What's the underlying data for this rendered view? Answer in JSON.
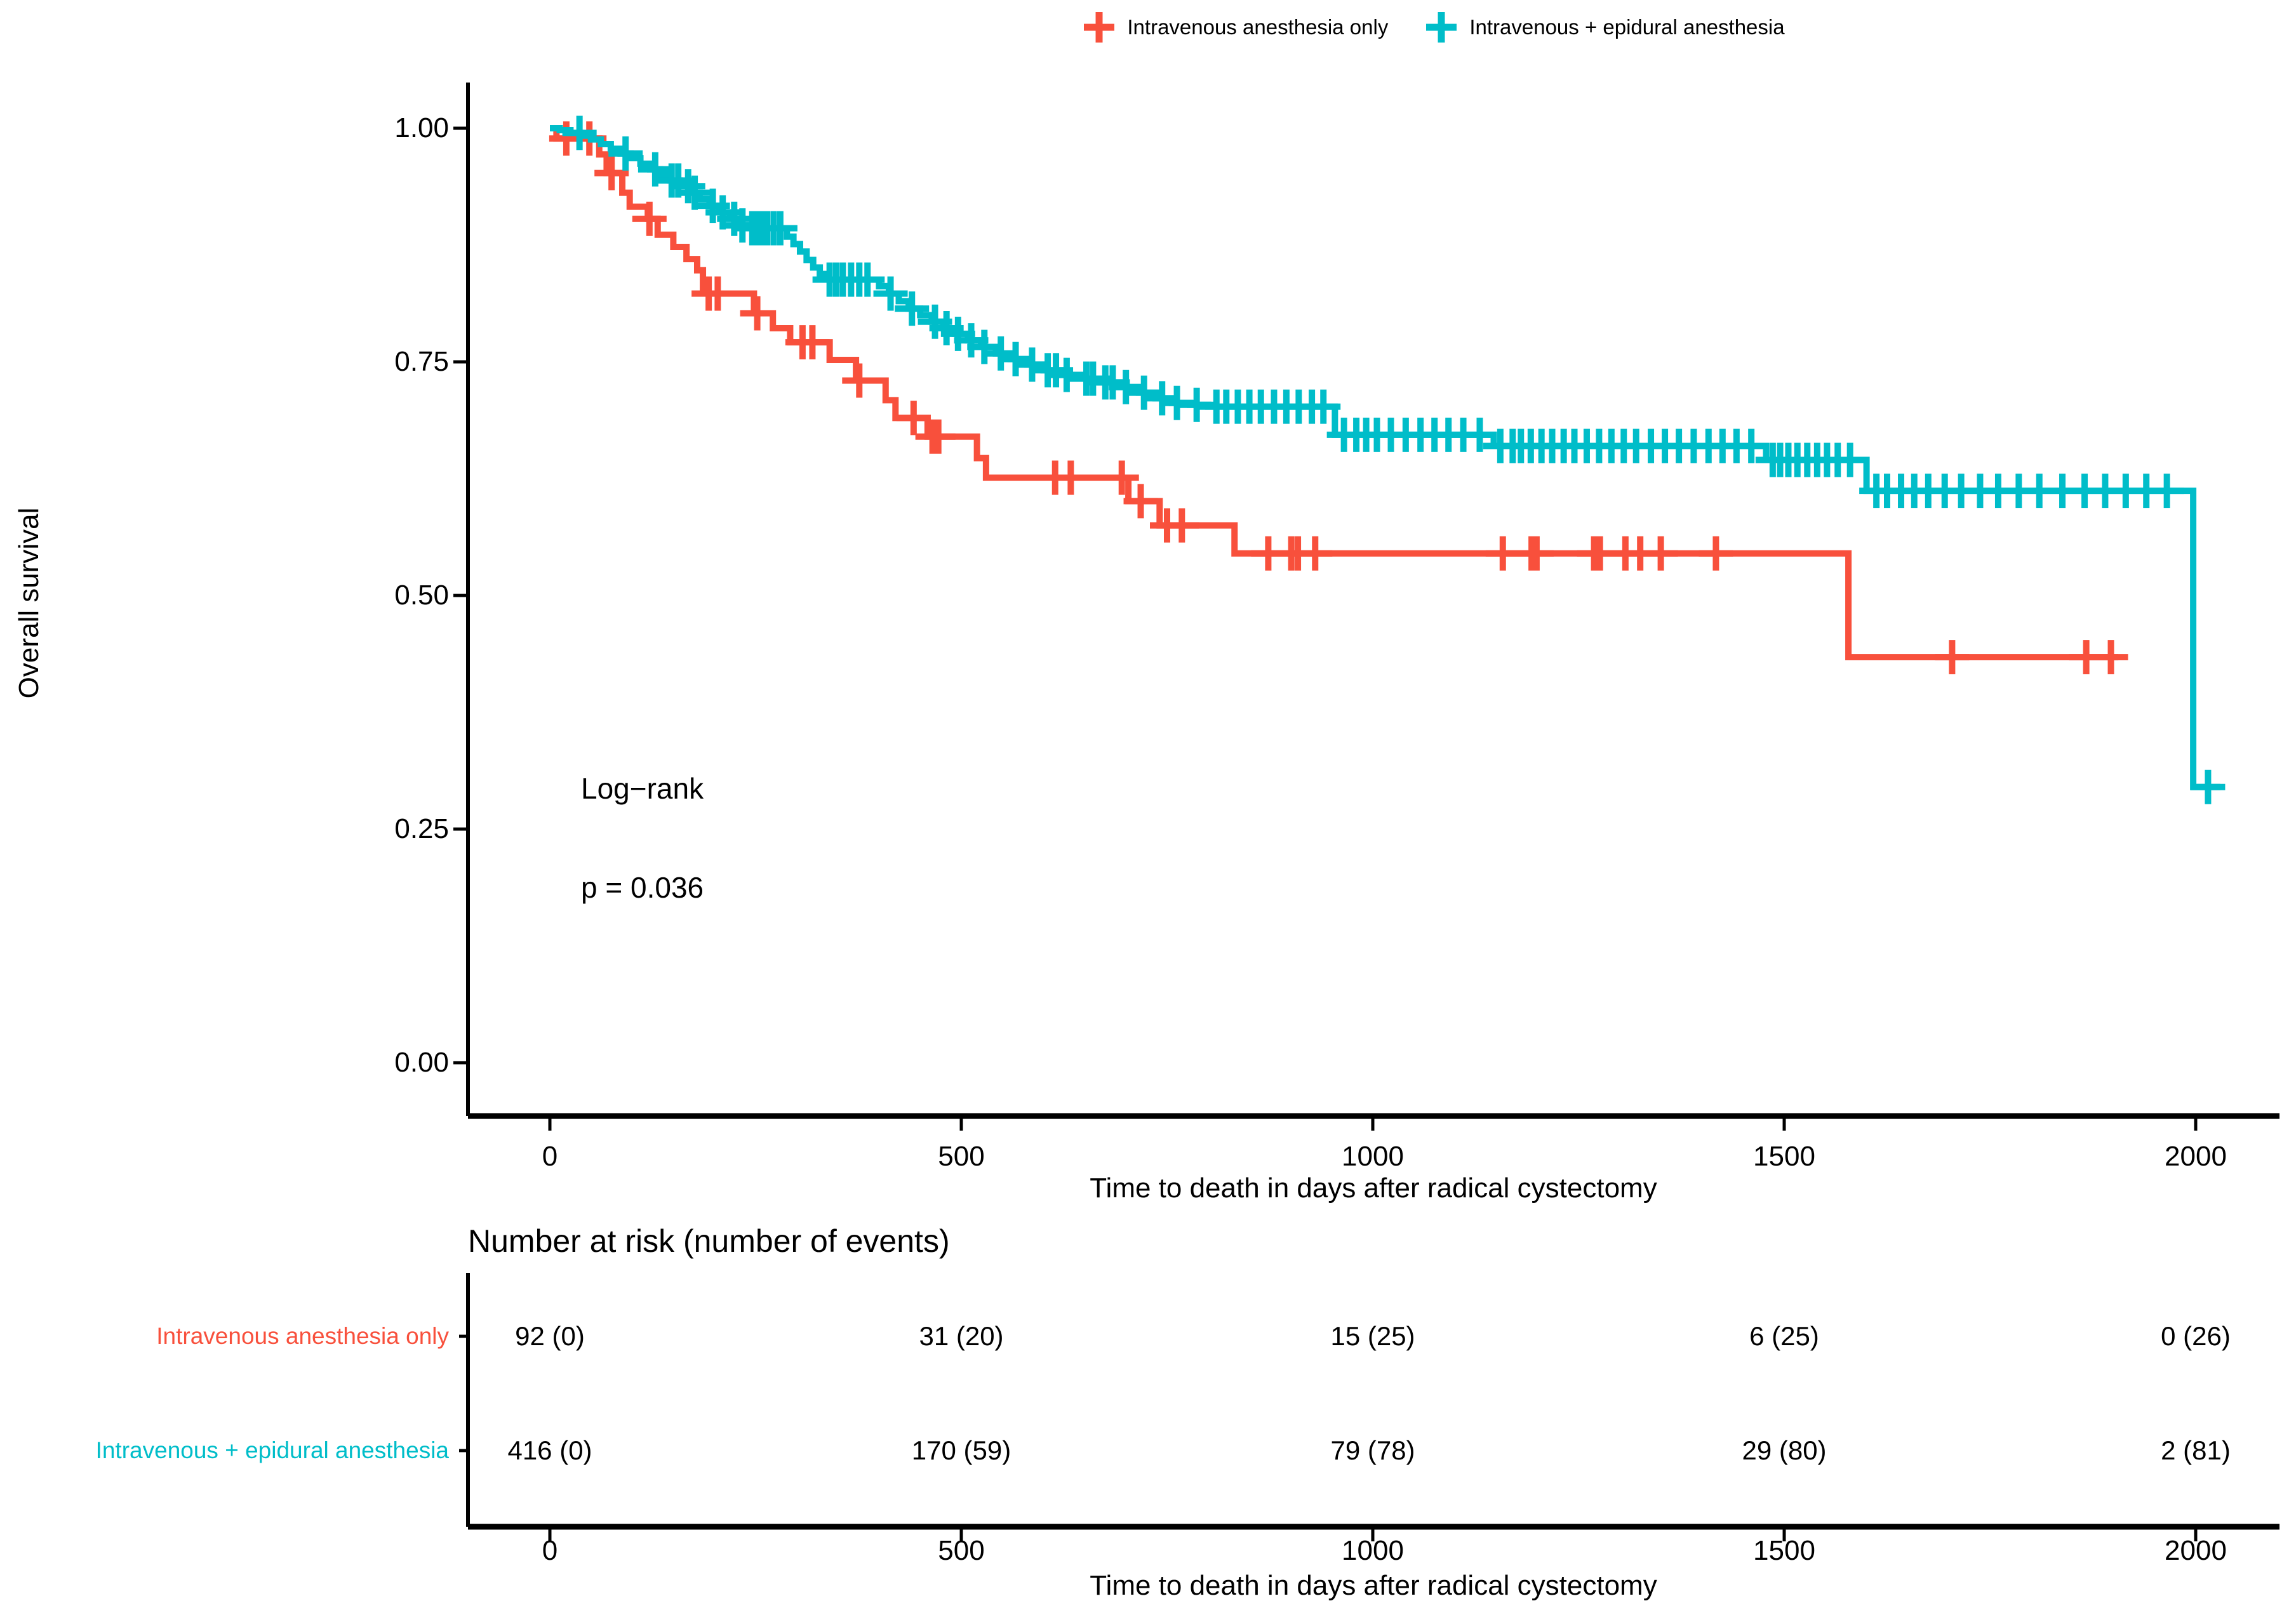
{
  "colors": {
    "group1": "#F8503C",
    "group2": "#00BDC9",
    "axis": "#000000"
  },
  "legend": {
    "items": [
      {
        "label": "Intravenous anesthesia only",
        "color": "#F8503C"
      },
      {
        "label": "Intravenous + epidural anesthesia",
        "color": "#00BDC9"
      }
    ]
  },
  "chart_data": {
    "type": "line",
    "subtype": "kaplan-meier-step",
    "title": "",
    "xlabel": "Time to death in days after radical cystectomy",
    "ylabel": "Overall survival",
    "xlim": [
      0,
      2000
    ],
    "ylim": [
      0,
      1
    ],
    "x_ticks": [
      0,
      500,
      1000,
      1500,
      2000
    ],
    "y_ticks": [
      0,
      0.25,
      0.5,
      0.75,
      1
    ],
    "legend_position": "top",
    "grid": false,
    "annotations": {
      "test_label": "Log−rank",
      "p_label": "p = 0.036"
    },
    "series": [
      {
        "name": "Intravenous anesthesia only",
        "color": "#F8503C",
        "end_day": 1906,
        "steps": [
          [
            0,
            1
          ],
          [
            8,
            0.989
          ],
          [
            60,
            0.972
          ],
          [
            69,
            0.952
          ],
          [
            88,
            0.931
          ],
          [
            97,
            0.916
          ],
          [
            119,
            0.903
          ],
          [
            131,
            0.886
          ],
          [
            150,
            0.873
          ],
          [
            166,
            0.86
          ],
          [
            179,
            0.848
          ],
          [
            186,
            0.823
          ],
          [
            248,
            0.802
          ],
          [
            271,
            0.786
          ],
          [
            292,
            0.771
          ],
          [
            340,
            0.752
          ],
          [
            372,
            0.73
          ],
          [
            408,
            0.709
          ],
          [
            420,
            0.69
          ],
          [
            459,
            0.67
          ],
          [
            519,
            0.647
          ],
          [
            530,
            0.626
          ],
          [
            703,
            0.601
          ],
          [
            741,
            0.575
          ],
          [
            832,
            0.545
          ],
          [
            1578,
            0.434
          ]
        ],
        "censor_days": [
          20,
          48,
          75,
          121,
          193,
          204,
          252,
          307,
          319,
          376,
          442,
          465,
          472,
          614,
          633,
          695,
          718,
          750,
          768,
          873,
          901,
          909,
          930,
          1158,
          1193,
          1199,
          1269,
          1276,
          1307,
          1325,
          1350,
          1417,
          1704,
          1867,
          1897
        ]
      },
      {
        "name": "Intravenous + epidural anesthesia",
        "color": "#00BDC9",
        "end_day": 2030,
        "steps": [
          [
            0,
            1
          ],
          [
            12,
            0.998
          ],
          [
            25,
            0.995
          ],
          [
            38,
            0.992
          ],
          [
            50,
            0.988
          ],
          [
            62,
            0.983
          ],
          [
            74,
            0.978
          ],
          [
            86,
            0.973
          ],
          [
            98,
            0.968
          ],
          [
            110,
            0.962
          ],
          [
            122,
            0.956
          ],
          [
            134,
            0.95
          ],
          [
            146,
            0.944
          ],
          [
            158,
            0.938
          ],
          [
            170,
            0.931
          ],
          [
            182,
            0.924
          ],
          [
            194,
            0.917
          ],
          [
            206,
            0.91
          ],
          [
            218,
            0.903
          ],
          [
            230,
            0.896
          ],
          [
            242,
            0.893
          ],
          [
            288,
            0.884
          ],
          [
            296,
            0.876
          ],
          [
            304,
            0.868
          ],
          [
            312,
            0.859
          ],
          [
            320,
            0.851
          ],
          [
            328,
            0.844
          ],
          [
            336,
            0.838
          ],
          [
            400,
            0.831
          ],
          [
            412,
            0.823
          ],
          [
            424,
            0.815
          ],
          [
            436,
            0.807
          ],
          [
            450,
            0.8
          ],
          [
            464,
            0.793
          ],
          [
            478,
            0.786
          ],
          [
            492,
            0.78
          ],
          [
            508,
            0.773
          ],
          [
            524,
            0.766
          ],
          [
            542,
            0.759
          ],
          [
            560,
            0.753
          ],
          [
            580,
            0.747
          ],
          [
            600,
            0.741
          ],
          [
            622,
            0.736
          ],
          [
            645,
            0.732
          ],
          [
            668,
            0.728
          ],
          [
            692,
            0.723
          ],
          [
            716,
            0.717
          ],
          [
            736,
            0.711
          ],
          [
            756,
            0.706
          ],
          [
            778,
            0.704
          ],
          [
            800,
            0.702
          ],
          [
            954,
            0.672
          ],
          [
            1147,
            0.66
          ],
          [
            1478,
            0.645
          ],
          [
            1600,
            0.612
          ],
          [
            1997,
            0.295
          ]
        ],
        "censor_days": [
          36,
          92,
          128,
          148,
          156,
          168,
          176,
          198,
          210,
          224,
          234,
          246,
          252,
          258,
          264,
          272,
          280,
          340,
          348,
          356,
          366,
          376,
          386,
          414,
          440,
          468,
          482,
          496,
          512,
          528,
          548,
          566,
          586,
          605,
          615,
          628,
          652,
          660,
          675,
          684,
          700,
          722,
          744,
          762,
          786,
          810,
          822,
          836,
          850,
          864,
          880,
          895,
          910,
          926,
          940,
          965,
          980,
          992,
          1005,
          1022,
          1040,
          1058,
          1075,
          1092,
          1110,
          1130,
          1155,
          1170,
          1180,
          1192,
          1205,
          1218,
          1232,
          1245,
          1260,
          1275,
          1290,
          1305,
          1320,
          1338,
          1355,
          1372,
          1390,
          1408,
          1425,
          1442,
          1460,
          1486,
          1495,
          1505,
          1516,
          1528,
          1540,
          1552,
          1565,
          1580,
          1612,
          1625,
          1642,
          1658,
          1675,
          1695,
          1715,
          1738,
          1760,
          1785,
          1810,
          1838,
          1865,
          1890,
          1915,
          1940,
          1965,
          2015
        ]
      }
    ]
  },
  "risk_table": {
    "title": "Number at risk (number of events)",
    "xlabel": "Time to death in days after radical cystectomy",
    "x_ticks": [
      0,
      500,
      1000,
      1500,
      2000
    ],
    "rows": [
      {
        "label": "Intravenous anesthesia only",
        "color": "#F8503C",
        "values": [
          "92 (0)",
          "31 (20)",
          "15 (25)",
          "6 (25)",
          "0 (26)"
        ]
      },
      {
        "label": "Intravenous + epidural anesthesia",
        "color": "#00BDC9",
        "values": [
          "416 (0)",
          "170 (59)",
          "79 (78)",
          "29 (80)",
          "2 (81)"
        ]
      }
    ]
  }
}
